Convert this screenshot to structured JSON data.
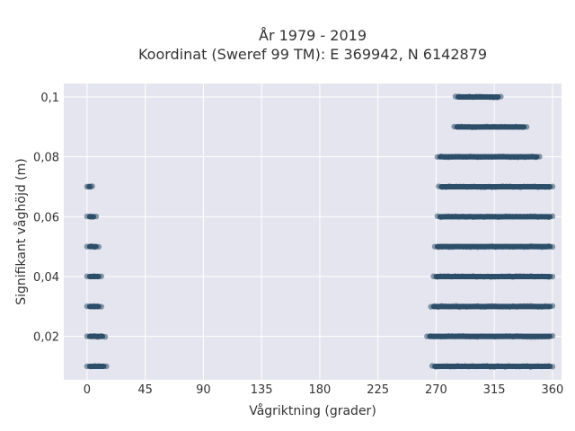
{
  "chart_data": {
    "type": "scatter",
    "title": "År 1979 - 2019",
    "subtitle": "Koordinat (Sweref 99 TM): E 369942, N 6142879",
    "xlabel": "Vågriktning (grader)",
    "ylabel": "Signifikant våghöjd (m)",
    "xlim": [
      -18,
      367
    ],
    "ylim": [
      0.0055,
      0.1045
    ],
    "x_ticks": [
      0,
      45,
      90,
      135,
      180,
      225,
      270,
      315,
      360
    ],
    "x_tick_labels": [
      "0",
      "45",
      "90",
      "135",
      "180",
      "225",
      "270",
      "315",
      "360"
    ],
    "y_ticks": [
      0.02,
      0.04,
      0.06,
      0.08,
      0.1
    ],
    "y_tick_labels": [
      "0,02",
      "0,04",
      "0,06",
      "0,08",
      "0,1"
    ],
    "grid": true,
    "background_color": "#e5e5ef",
    "marker_color": "#2e4e68",
    "series": [
      {
        "rows": [
          {
            "y": 0.01,
            "segments": [
              [
                0,
                15
              ],
              [
                267,
                360
              ]
            ]
          },
          {
            "y": 0.02,
            "segments": [
              [
                0,
                14
              ],
              [
                263,
                360
              ]
            ]
          },
          {
            "y": 0.03,
            "segments": [
              [
                0,
                11
              ],
              [
                266,
                360
              ]
            ]
          },
          {
            "y": 0.04,
            "segments": [
              [
                0,
                11
              ],
              [
                268,
                360
              ]
            ]
          },
          {
            "y": 0.05,
            "segments": [
              [
                0,
                9
              ],
              [
                269,
                360
              ]
            ]
          },
          {
            "y": 0.06,
            "segments": [
              [
                0,
                7
              ],
              [
                271,
                360
              ]
            ]
          },
          {
            "y": 0.07,
            "segments": [
              [
                0,
                4
              ],
              [
                272,
                360
              ]
            ]
          },
          {
            "y": 0.08,
            "segments": [
              [
                271,
                350
              ]
            ]
          },
          {
            "y": 0.09,
            "segments": [
              [
                284,
                340
              ]
            ]
          },
          {
            "y": 0.1,
            "segments": [
              [
                285,
                320
              ]
            ]
          }
        ]
      }
    ]
  }
}
